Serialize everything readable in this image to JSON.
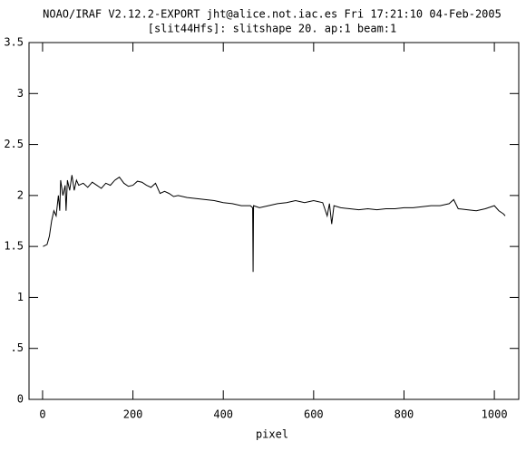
{
  "chart_data": {
    "type": "line",
    "title": "NOAO/IRAF V2.12.2-EXPORT jht@alice.not.iac.es Fri 17:21:10 04-Feb-2005",
    "subtitle": "[slit44Hfs]: slitshape 20. ap:1 beam:1",
    "x_label": "pixel",
    "color": "#000000",
    "xlim": [
      -30,
      1054
    ],
    "ylim": [
      0,
      3.5
    ],
    "xticks": [
      0,
      200,
      400,
      600,
      800,
      1000
    ],
    "yticks": [
      0,
      {
        "value": 0.5,
        "label": ".5"
      },
      1,
      1.5,
      2,
      2.5,
      3,
      3.5
    ],
    "x": [
      1,
      10,
      15,
      20,
      25,
      30,
      35,
      38,
      40,
      45,
      50,
      52,
      55,
      60,
      65,
      70,
      75,
      80,
      90,
      100,
      110,
      120,
      130,
      140,
      150,
      160,
      170,
      180,
      190,
      200,
      210,
      220,
      230,
      240,
      250,
      260,
      270,
      280,
      290,
      300,
      320,
      340,
      360,
      380,
      400,
      420,
      440,
      460,
      465,
      466,
      467,
      480,
      500,
      520,
      540,
      560,
      580,
      600,
      620,
      630,
      635,
      640,
      645,
      660,
      680,
      700,
      720,
      740,
      760,
      780,
      800,
      820,
      840,
      860,
      880,
      900,
      910,
      920,
      940,
      960,
      980,
      1000,
      1010,
      1020,
      1024
    ],
    "values": [
      1.5,
      1.52,
      1.6,
      1.75,
      1.85,
      1.8,
      2.0,
      1.85,
      2.15,
      2.0,
      2.1,
      1.85,
      2.15,
      2.05,
      2.2,
      2.05,
      2.15,
      2.1,
      2.12,
      2.08,
      2.13,
      2.1,
      2.07,
      2.12,
      2.1,
      2.15,
      2.18,
      2.12,
      2.09,
      2.1,
      2.14,
      2.13,
      2.1,
      2.08,
      2.12,
      2.02,
      2.04,
      2.02,
      1.99,
      2.0,
      1.98,
      1.97,
      1.96,
      1.95,
      1.93,
      1.92,
      1.9,
      1.9,
      1.88,
      1.25,
      1.9,
      1.88,
      1.9,
      1.92,
      1.93,
      1.95,
      1.93,
      1.95,
      1.93,
      1.8,
      1.92,
      1.72,
      1.9,
      1.88,
      1.87,
      1.86,
      1.87,
      1.86,
      1.87,
      1.87,
      1.88,
      1.88,
      1.89,
      1.9,
      1.9,
      1.92,
      1.96,
      1.87,
      1.86,
      1.85,
      1.87,
      1.9,
      1.85,
      1.82,
      1.8
    ]
  }
}
